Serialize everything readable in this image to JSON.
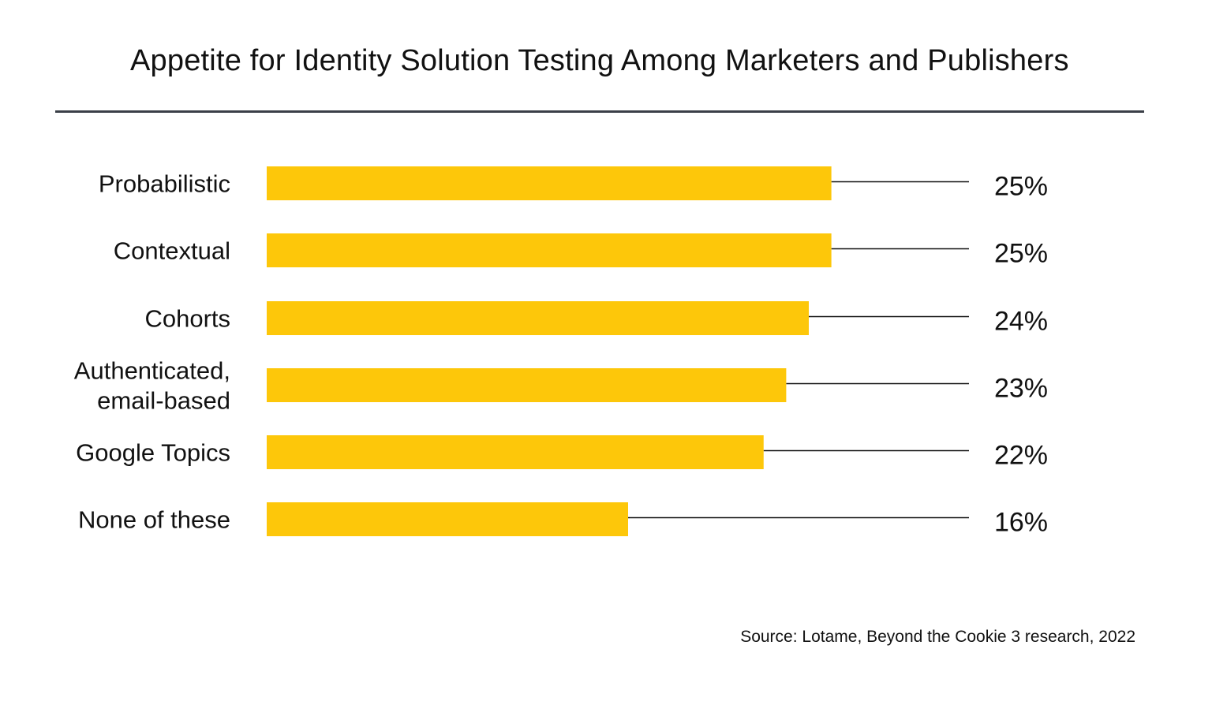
{
  "chart_data": {
    "type": "bar",
    "orientation": "horizontal",
    "title": "Appetite for Identity Solution Testing Among Marketers and Publishers",
    "categories": [
      [
        "Probabilistic"
      ],
      [
        "Contextual"
      ],
      [
        "Cohorts"
      ],
      [
        "Authenticated,",
        "email-based"
      ],
      [
        "Google Topics"
      ],
      [
        "None of these"
      ]
    ],
    "values": [
      25,
      25,
      24,
      23,
      22,
      16
    ],
    "value_labels": [
      "25%",
      "25%",
      "24%",
      "23%",
      "22%",
      "16%"
    ],
    "unit": "%",
    "xlim": [
      0,
      32
    ],
    "xlabel": "",
    "ylabel": "",
    "grid": false,
    "legend": "none",
    "source": "Source: Lotame, Beyond the Cookie 3 research, 2022"
  },
  "colors": {
    "bar": "#FDC70A",
    "leader_line": "#111111",
    "rule": "#3a3f47"
  }
}
